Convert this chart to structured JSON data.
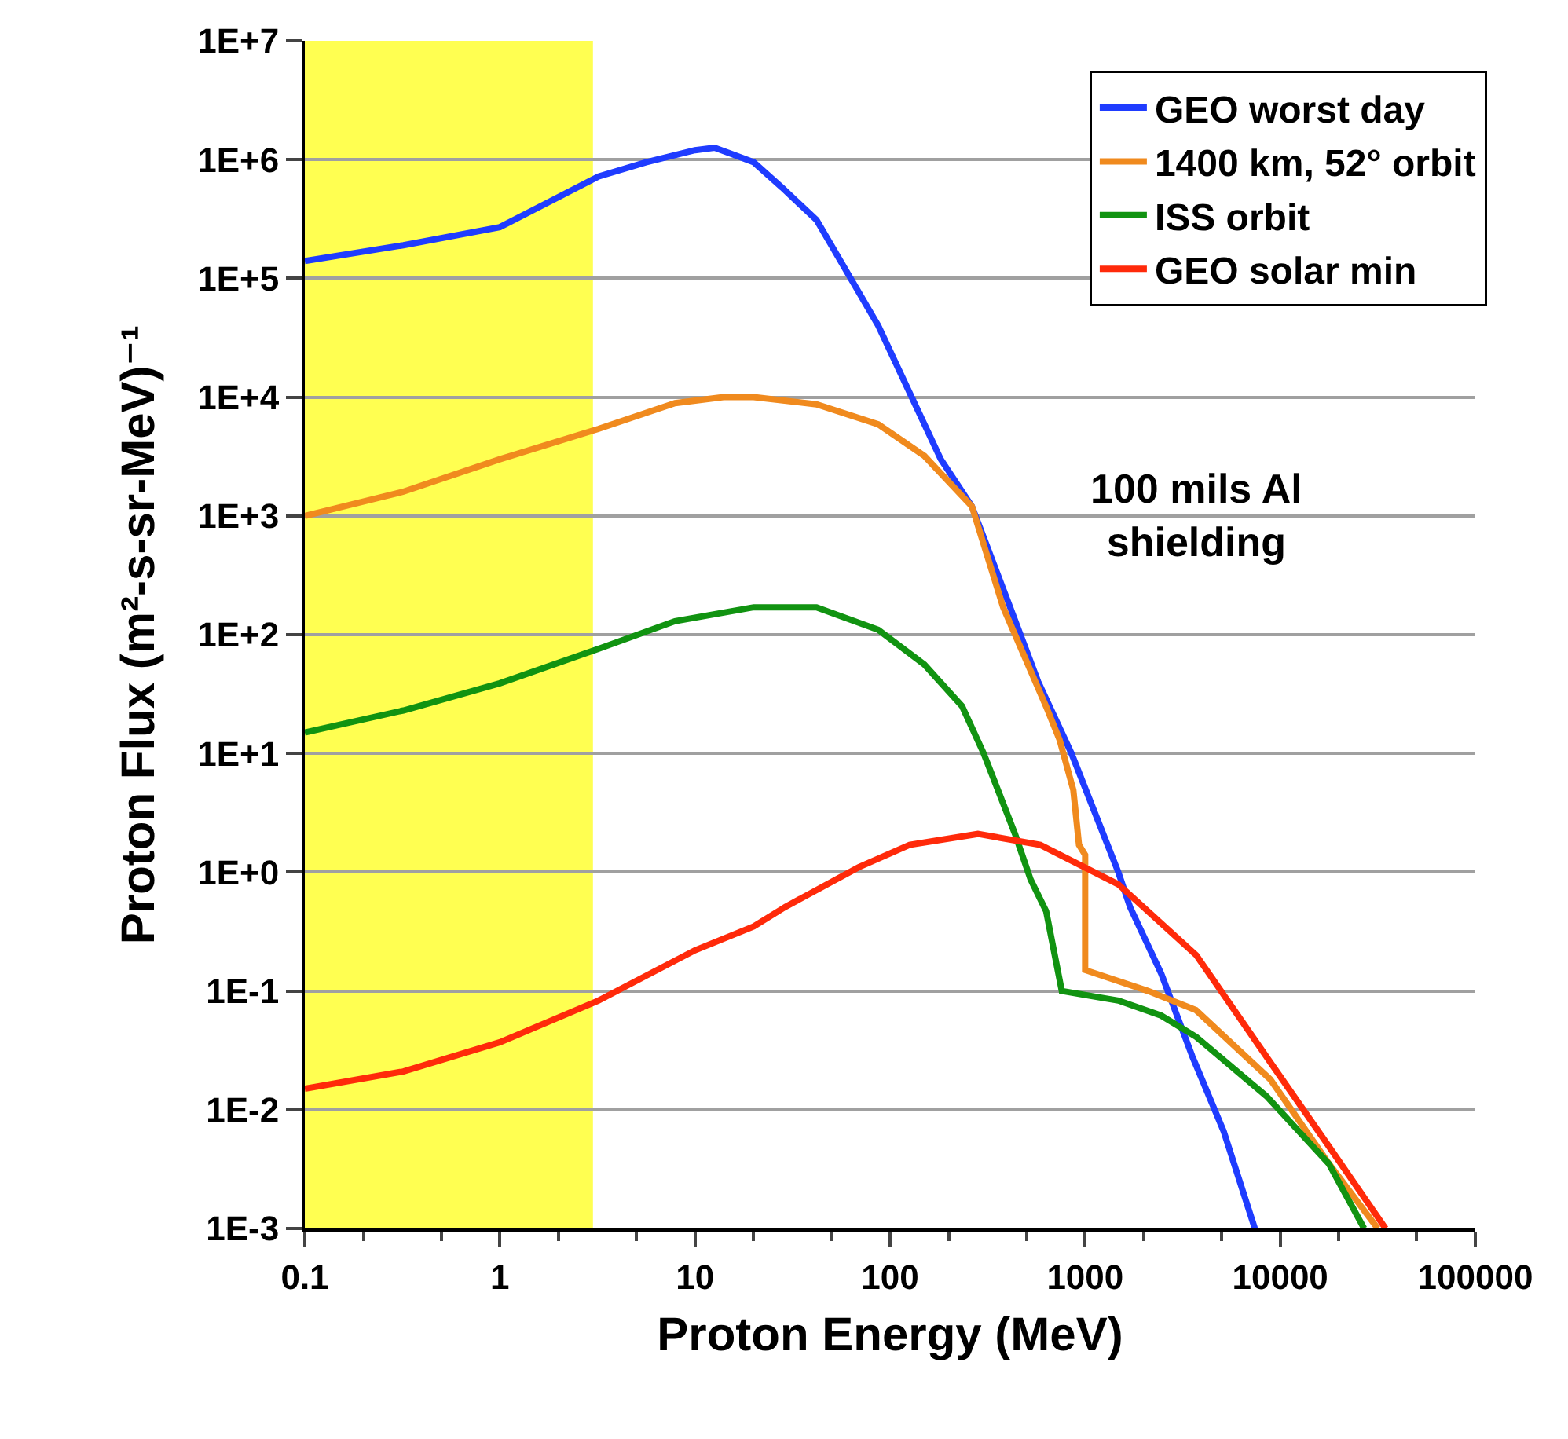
{
  "chart_data": {
    "type": "line",
    "xlabel": "Proton Energy (MeV)",
    "ylabel": "Proton Flux (m²-s-sr-MeV)⁻¹",
    "log": "xy",
    "grid": "y",
    "legend": "top right",
    "line_style": "solid",
    "marker": "none",
    "xlim": [
      0.1,
      100000
    ],
    "xticks": [
      0.1,
      1,
      10,
      100,
      1000,
      10000,
      100000
    ],
    "ylim": [
      0.001,
      10000000
    ],
    "yticks": [
      {
        "value": 0.001,
        "label": "1E-3"
      },
      {
        "value": 0.01,
        "label": "1E-2"
      },
      {
        "value": 0.1,
        "label": "1E-1"
      },
      {
        "value": 1,
        "label": "1E+0"
      },
      {
        "value": 10,
        "label": "1E+1"
      },
      {
        "value": 100,
        "label": "1E+2"
      },
      {
        "value": 1000,
        "label": "1E+3"
      },
      {
        "value": 10000,
        "label": "1E+4"
      },
      {
        "value": 100000,
        "label": "1E+5"
      },
      {
        "value": 1000000,
        "label": "1E+6"
      },
      {
        "value": 10000000,
        "label": "1E+7"
      }
    ],
    "bands": [
      {
        "axis": "x",
        "from": 0.1,
        "to": 3,
        "color": "#ffff33"
      }
    ],
    "annotations": [
      "100 mils Al\nshielding"
    ],
    "series": [
      {
        "name": "GEO worst day",
        "color": "#1f3cff",
        "x": [
          0.1,
          0.32,
          1,
          3.2,
          5.6,
          10,
          12.6,
          15.8,
          20,
          28,
          42,
          87,
          182,
          263,
          385,
          575,
          851,
          1479,
          1698,
          2455,
          3548,
          5129,
          7413
        ],
        "values": [
          140000,
          190000,
          270000,
          720000,
          950000,
          1200000,
          1260000,
          1100000,
          950000,
          580000,
          310000,
          40000,
          3000,
          1200,
          230,
          40,
          10,
          1,
          0.51,
          0.14,
          0.028,
          0.0066,
          0.001
        ]
      },
      {
        "name": "1400 km, 52° orbit",
        "color": "#f08a1e",
        "x": [
          0.1,
          0.32,
          1,
          3.2,
          7.9,
          14,
          20,
          42,
          87,
          150,
          263,
          380,
          630,
          740,
          870,
          930,
          1000,
          1000,
          2100,
          3700,
          8900,
          17800,
          31600
        ],
        "values": [
          1000,
          1600,
          3000,
          5400,
          8900,
          10000,
          10000,
          8700,
          5900,
          3200,
          1200,
          170,
          25,
          13,
          4.9,
          1.7,
          1.4,
          0.15,
          0.1,
          0.069,
          0.018,
          0.0035,
          0.001
        ]
      },
      {
        "name": "ISS orbit",
        "color": "#119311",
        "x": [
          0.1,
          0.32,
          1,
          3.2,
          7.9,
          20,
          42,
          87,
          150,
          234,
          302,
          437,
          525,
          631,
          759,
          1479,
          2455,
          3715,
          8511,
          17783,
          26915
        ],
        "values": [
          15,
          23,
          39,
          76,
          130,
          170,
          170,
          110,
          56,
          25,
          10,
          2.1,
          0.87,
          0.47,
          0.1,
          0.083,
          0.062,
          0.041,
          0.013,
          0.0035,
          0.001
        ]
      },
      {
        "name": "GEO solar min",
        "color": "#ff2a0a",
        "x": [
          0.1,
          0.32,
          1,
          3.2,
          10,
          20,
          29,
          69,
          126,
          282,
          589,
          1479,
          3715,
          8913,
          17783,
          34674
        ],
        "values": [
          0.015,
          0.021,
          0.037,
          0.083,
          0.22,
          0.35,
          0.51,
          1.1,
          1.7,
          2.1,
          1.7,
          0.79,
          0.2,
          0.025,
          0.0049,
          0.001
        ]
      }
    ]
  }
}
